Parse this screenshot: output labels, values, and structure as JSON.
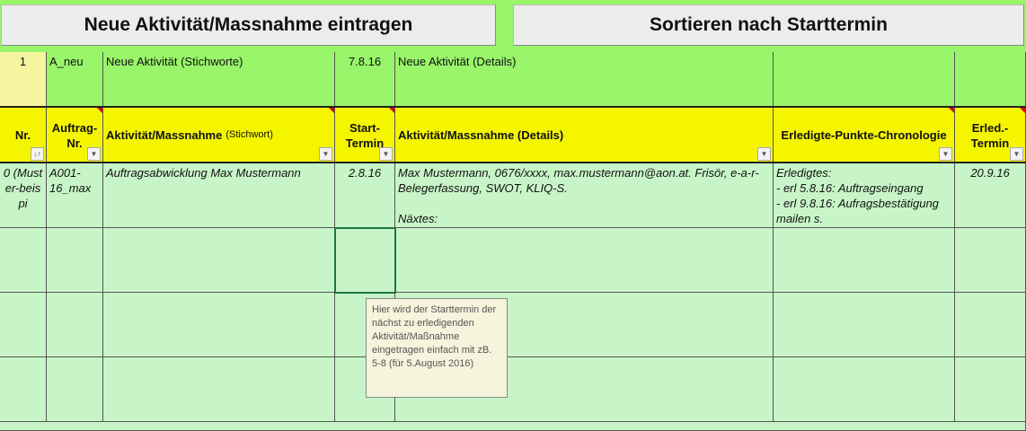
{
  "buttons": {
    "new": "Neue Aktivität/Massnahme eintragen",
    "sort": "Sortieren nach Starttermin"
  },
  "new_row": [
    "1",
    "A_neu",
    "Neue Aktivität (Stichworte)",
    "7.8.16",
    "Neue Aktivität (Details)",
    "",
    ""
  ],
  "headers": [
    {
      "main": "Nr.",
      "sub": ""
    },
    {
      "main": "Auftrag-Nr.",
      "sub": ""
    },
    {
      "main": "Aktivität/Massnahme",
      "sub": "(Stichwort)"
    },
    {
      "main": "Start-Termin",
      "sub": ""
    },
    {
      "main": "Aktivität/Massnahme (Details)",
      "sub": ""
    },
    {
      "main": "Erledigte-Punkte-Chronologie",
      "sub": ""
    },
    {
      "main": "Erled.-Termin",
      "sub": ""
    }
  ],
  "data_row": {
    "nr": "0 (Muster-beispi",
    "auftrag": "A001-16_max",
    "aktivitaet": "Auftragsabwicklung Max Mustermann",
    "start": "2.8.16",
    "details": "Max Mustermann, 0676/xxxx, max.mustermann@aon.at. Frisör, e-a-r-Belegerfassung, SWOT, KLIQ-S.",
    "details2": "Näxtes:",
    "erledigt": "Erledigtes:\n- erl 5.8.16: Auftragseingang\n- erl 9.8.16: Aufragsbestätigung mailen s.",
    "erled_termin": "20.9.16"
  },
  "tooltip": "Hier wird der Starttermin der nächst zu erledigenden Aktivität/Maßnahme eingetragen einfach mit zB. 5-8   (für 5.August 2016)"
}
